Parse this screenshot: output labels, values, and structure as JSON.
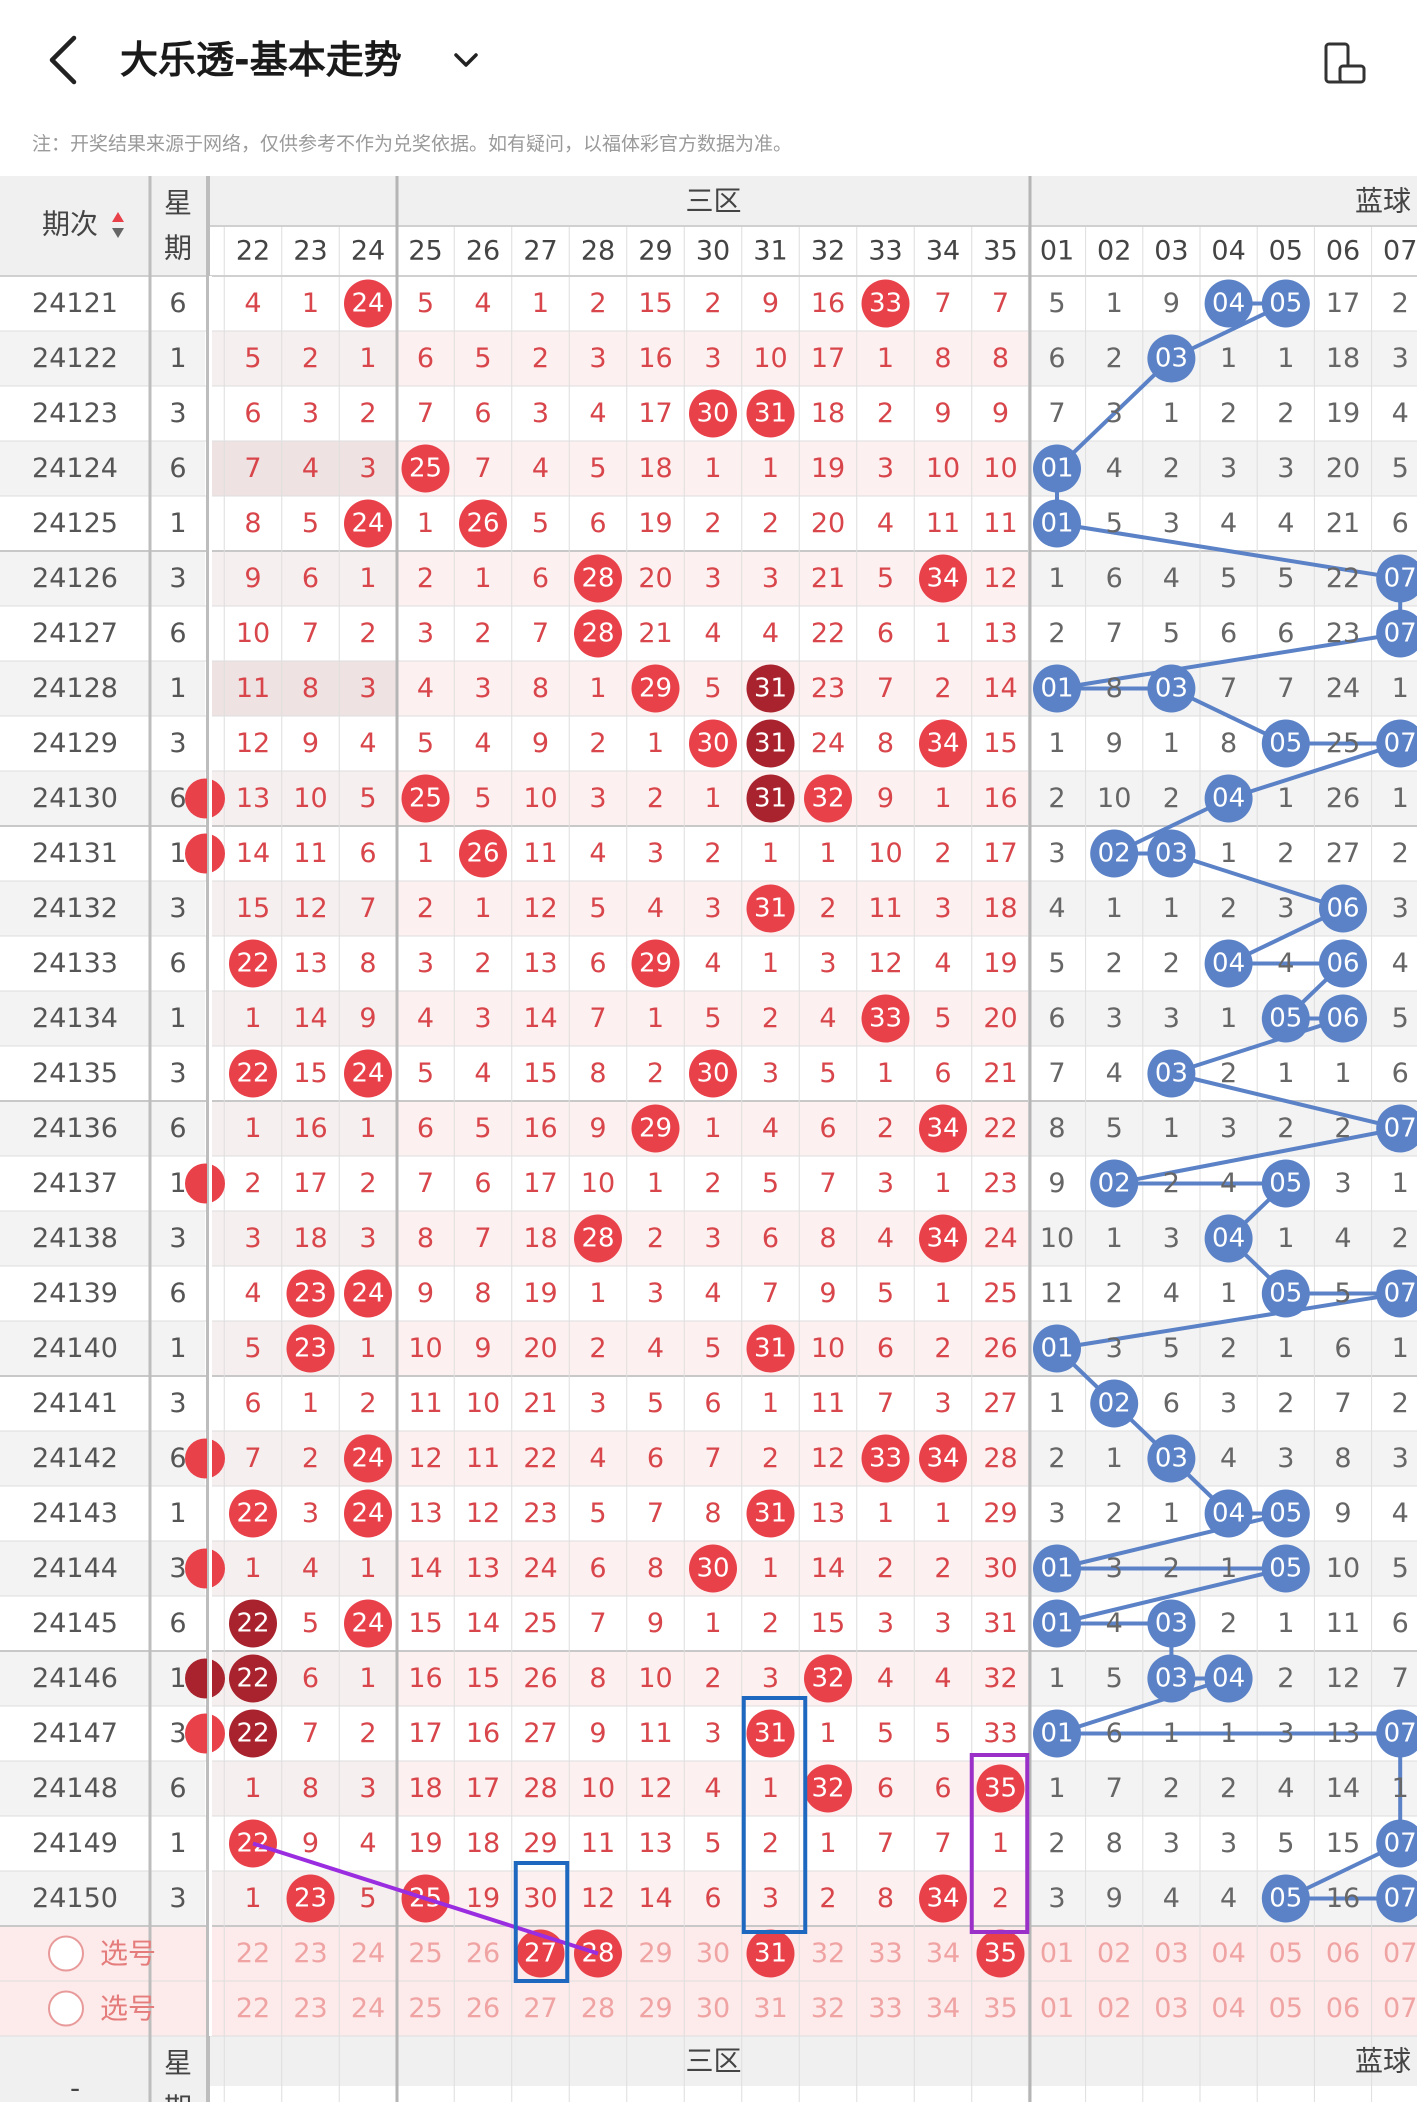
{
  "header": {
    "title": "大乐透-基本走势",
    "notice": "注：开奖结果来源于网络，仅供参考不作为兑奖依据。如有疑问，以福体彩官方数据为准。"
  },
  "icons": {
    "back": "chevron-left-icon",
    "title_menu": "chevron-down-icon",
    "view_mode": "phone-rotate-icon"
  },
  "columns": {
    "period_header": "期次",
    "week_header_line1": "星",
    "week_header_line2": "期",
    "front_zone_label": "三区",
    "blue_zone_label": "蓝球",
    "front_numbers": [
      "22",
      "23",
      "24",
      "25",
      "26",
      "27",
      "28",
      "29",
      "30",
      "31",
      "32",
      "33",
      "34",
      "35"
    ],
    "blue_numbers": [
      "01",
      "02",
      "03",
      "04",
      "05",
      "06",
      "07"
    ]
  },
  "colors": {
    "red_ball": "#e8414a",
    "dark_red_ball": "#a8232d",
    "blue_ball": "#5b82c7",
    "red_text": "#d8454a",
    "gray_text": "#555555",
    "select_text": "#f0a3a3",
    "blue_box": "#1e68c0",
    "purple_box": "#9b30c8",
    "purple_line": "#9b2de0"
  },
  "rows": [
    {
      "period": "24121",
      "week": "6",
      "edge": "",
      "front": [
        "4",
        "1",
        "24*",
        "5",
        "4",
        "1",
        "2",
        "15",
        "2",
        "9",
        "16",
        "33*",
        "7",
        "7"
      ],
      "blue": [
        "5",
        "1",
        "9",
        "04*",
        "05*",
        "17",
        "2"
      ]
    },
    {
      "period": "24122",
      "week": "1",
      "edge": "",
      "front": [
        "5",
        "2",
        "1",
        "6",
        "5",
        "2",
        "3",
        "16",
        "3",
        "10",
        "17",
        "1",
        "8",
        "8"
      ],
      "blue": [
        "6",
        "2",
        "03*",
        "1",
        "1",
        "18",
        "3"
      ]
    },
    {
      "period": "24123",
      "week": "3",
      "edge": "",
      "front": [
        "6",
        "3",
        "2",
        "7",
        "6",
        "3",
        "4",
        "17",
        "30*",
        "31*",
        "18",
        "2",
        "9",
        "9"
      ],
      "blue": [
        "7",
        "3",
        "1",
        "2",
        "2",
        "19",
        "4"
      ]
    },
    {
      "period": "24124",
      "week": "6",
      "edge": "",
      "front": [
        "7",
        "4",
        "3",
        "25*",
        "7",
        "4",
        "5",
        "18",
        "1",
        "1",
        "19",
        "3",
        "10",
        "10"
      ],
      "blue": [
        "01*",
        "4",
        "2",
        "3",
        "3",
        "20",
        "5"
      ]
    },
    {
      "period": "24125",
      "week": "1",
      "edge": "",
      "front": [
        "8",
        "5",
        "24*",
        "1",
        "26*",
        "5",
        "6",
        "19",
        "2",
        "2",
        "20",
        "4",
        "11",
        "11"
      ],
      "blue": [
        "01*",
        "5",
        "3",
        "4",
        "4",
        "21",
        "6"
      ]
    },
    {
      "period": "24126",
      "week": "3",
      "edge": "",
      "front": [
        "9",
        "6",
        "1",
        "2",
        "1",
        "6",
        "28*",
        "20",
        "3",
        "3",
        "21",
        "5",
        "34*",
        "12"
      ],
      "blue": [
        "1",
        "6",
        "4",
        "5",
        "5",
        "22",
        "07*"
      ]
    },
    {
      "period": "24127",
      "week": "6",
      "edge": "",
      "front": [
        "10",
        "7",
        "2",
        "3",
        "2",
        "7",
        "28*",
        "21",
        "4",
        "4",
        "22",
        "6",
        "1",
        "13"
      ],
      "blue": [
        "2",
        "7",
        "5",
        "6",
        "6",
        "23",
        "07*"
      ]
    },
    {
      "period": "24128",
      "week": "1",
      "edge": "",
      "front": [
        "11",
        "8",
        "3",
        "4",
        "3",
        "8",
        "1",
        "29*",
        "5",
        "31#",
        "23",
        "7",
        "2",
        "14"
      ],
      "blue": [
        "01*",
        "8",
        "03*",
        "7",
        "7",
        "24",
        "1"
      ]
    },
    {
      "period": "24129",
      "week": "3",
      "edge": "",
      "front": [
        "12",
        "9",
        "4",
        "5",
        "4",
        "9",
        "2",
        "1",
        "30*",
        "31#",
        "24",
        "8",
        "34*",
        "15"
      ],
      "blue": [
        "1",
        "9",
        "1",
        "8",
        "05*",
        "25",
        "07*"
      ]
    },
    {
      "period": "24130",
      "week": "6",
      "edge": "b",
      "front": [
        "13",
        "10",
        "5",
        "25*",
        "5",
        "10",
        "3",
        "2",
        "1",
        "31#",
        "32*",
        "9",
        "1",
        "16"
      ],
      "blue": [
        "2",
        "10",
        "2",
        "04*",
        "1",
        "26",
        "1"
      ]
    },
    {
      "period": "24131",
      "week": "1",
      "edge": "b",
      "front": [
        "14",
        "11",
        "6",
        "1",
        "26*",
        "11",
        "4",
        "3",
        "2",
        "1",
        "1",
        "10",
        "2",
        "17"
      ],
      "blue": [
        "3",
        "02*",
        "03*",
        "1",
        "2",
        "27",
        "2"
      ]
    },
    {
      "period": "24132",
      "week": "3",
      "edge": "",
      "front": [
        "15",
        "12",
        "7",
        "2",
        "1",
        "12",
        "5",
        "4",
        "3",
        "31*",
        "2",
        "11",
        "3",
        "18"
      ],
      "blue": [
        "4",
        "1",
        "1",
        "2",
        "3",
        "06*",
        "3"
      ]
    },
    {
      "period": "24133",
      "week": "6",
      "edge": "",
      "front": [
        "22*",
        "13",
        "8",
        "3",
        "2",
        "13",
        "6",
        "29*",
        "4",
        "1",
        "3",
        "12",
        "4",
        "19"
      ],
      "blue": [
        "5",
        "2",
        "2",
        "04*",
        "4",
        "06*",
        "4"
      ]
    },
    {
      "period": "24134",
      "week": "1",
      "edge": "",
      "front": [
        "1",
        "14",
        "9",
        "4",
        "3",
        "14",
        "7",
        "1",
        "5",
        "2",
        "4",
        "33*",
        "5",
        "20"
      ],
      "blue": [
        "6",
        "3",
        "3",
        "1",
        "05*",
        "06*",
        "5"
      ]
    },
    {
      "period": "24135",
      "week": "3",
      "edge": "",
      "front": [
        "22*",
        "15",
        "24*",
        "5",
        "4",
        "15",
        "8",
        "2",
        "30*",
        "3",
        "5",
        "1",
        "6",
        "21"
      ],
      "blue": [
        "7",
        "4",
        "03*",
        "2",
        "1",
        "1",
        "6"
      ]
    },
    {
      "period": "24136",
      "week": "6",
      "edge": "",
      "front": [
        "1",
        "16",
        "1",
        "6",
        "5",
        "16",
        "9",
        "29*",
        "1",
        "4",
        "6",
        "2",
        "34*",
        "22"
      ],
      "blue": [
        "8",
        "5",
        "1",
        "3",
        "2",
        "2",
        "07*"
      ]
    },
    {
      "period": "24137",
      "week": "1",
      "edge": "b",
      "front": [
        "2",
        "17",
        "2",
        "7",
        "6",
        "17",
        "10",
        "1",
        "2",
        "5",
        "7",
        "3",
        "1",
        "23"
      ],
      "blue": [
        "9",
        "02*",
        "2",
        "4",
        "05*",
        "3",
        "1"
      ]
    },
    {
      "period": "24138",
      "week": "3",
      "edge": "",
      "front": [
        "3",
        "18",
        "3",
        "8",
        "7",
        "18",
        "28*",
        "2",
        "3",
        "6",
        "8",
        "4",
        "34*",
        "24"
      ],
      "blue": [
        "10",
        "1",
        "3",
        "04*",
        "1",
        "4",
        "2"
      ]
    },
    {
      "period": "24139",
      "week": "6",
      "edge": "",
      "front": [
        "4",
        "23*",
        "24*",
        "9",
        "8",
        "19",
        "1",
        "3",
        "4",
        "7",
        "9",
        "5",
        "1",
        "25"
      ],
      "blue": [
        "11",
        "2",
        "4",
        "1",
        "05*",
        "5",
        "07*"
      ]
    },
    {
      "period": "24140",
      "week": "1",
      "edge": "",
      "front": [
        "5",
        "23*",
        "1",
        "10",
        "9",
        "20",
        "2",
        "4",
        "5",
        "31*",
        "10",
        "6",
        "2",
        "26"
      ],
      "blue": [
        "01*",
        "3",
        "5",
        "2",
        "1",
        "6",
        "1"
      ]
    },
    {
      "period": "24141",
      "week": "3",
      "edge": "",
      "front": [
        "6",
        "1",
        "2",
        "11",
        "10",
        "21",
        "3",
        "5",
        "6",
        "1",
        "11",
        "7",
        "3",
        "27"
      ],
      "blue": [
        "1",
        "02*",
        "6",
        "3",
        "2",
        "7",
        "2"
      ]
    },
    {
      "period": "24142",
      "week": "6",
      "edge": "b",
      "front": [
        "7",
        "2",
        "24*",
        "12",
        "11",
        "22",
        "4",
        "6",
        "7",
        "2",
        "12",
        "33*",
        "34*",
        "28"
      ],
      "blue": [
        "2",
        "1",
        "03*",
        "4",
        "3",
        "8",
        "3"
      ]
    },
    {
      "period": "24143",
      "week": "1",
      "edge": "",
      "front": [
        "22*",
        "3",
        "24*",
        "13",
        "12",
        "23",
        "5",
        "7",
        "8",
        "31*",
        "13",
        "1",
        "1",
        "29"
      ],
      "blue": [
        "3",
        "2",
        "1",
        "04*",
        "05*",
        "9",
        "4"
      ]
    },
    {
      "period": "24144",
      "week": "3",
      "edge": "b",
      "front": [
        "1",
        "4",
        "1",
        "14",
        "13",
        "24",
        "6",
        "8",
        "30*",
        "1",
        "14",
        "2",
        "2",
        "30"
      ],
      "blue": [
        "01*",
        "3",
        "2",
        "1",
        "05*",
        "10",
        "5"
      ]
    },
    {
      "period": "24145",
      "week": "6",
      "edge": "",
      "front": [
        "22#",
        "5",
        "24*",
        "15",
        "14",
        "25",
        "7",
        "9",
        "1",
        "2",
        "15",
        "3",
        "3",
        "31"
      ],
      "blue": [
        "01*",
        "4",
        "03*",
        "2",
        "1",
        "11",
        "6"
      ]
    },
    {
      "period": "24146",
      "week": "1",
      "edge": "d",
      "front": [
        "22#",
        "6",
        "1",
        "16",
        "15",
        "26",
        "8",
        "10",
        "2",
        "3",
        "32*",
        "4",
        "4",
        "32"
      ],
      "blue": [
        "1",
        "5",
        "03*",
        "04*",
        "2",
        "12",
        "7"
      ]
    },
    {
      "period": "24147",
      "week": "3",
      "edge": "b",
      "front": [
        "22#",
        "7",
        "2",
        "17",
        "16",
        "27",
        "9",
        "11",
        "3",
        "31*",
        "1",
        "5",
        "5",
        "33"
      ],
      "blue": [
        "01*",
        "6",
        "1",
        "1",
        "3",
        "13",
        "07*"
      ]
    },
    {
      "period": "24148",
      "week": "6",
      "edge": "",
      "front": [
        "1",
        "8",
        "3",
        "18",
        "17",
        "28",
        "10",
        "12",
        "4",
        "1",
        "32*",
        "6",
        "6",
        "35*"
      ],
      "blue": [
        "1",
        "7",
        "2",
        "2",
        "4",
        "14",
        "1"
      ]
    },
    {
      "period": "24149",
      "week": "1",
      "edge": "",
      "front": [
        "22*",
        "9",
        "4",
        "19",
        "18",
        "29",
        "11",
        "13",
        "5",
        "2",
        "1",
        "7",
        "7",
        "1"
      ],
      "blue": [
        "2",
        "8",
        "3",
        "3",
        "5",
        "15",
        "07*"
      ]
    },
    {
      "period": "24150",
      "week": "3",
      "edge": "",
      "front": [
        "1",
        "23*",
        "5",
        "25*",
        "19",
        "30",
        "12",
        "14",
        "6",
        "3",
        "2",
        "8",
        "34*",
        "2"
      ],
      "blue": [
        "3",
        "9",
        "4",
        "4",
        "05*",
        "16",
        "07*"
      ]
    }
  ],
  "select_rows": [
    {
      "label": "选号",
      "selected_front": [
        "27",
        "28",
        "31",
        "35"
      ]
    },
    {
      "label": "选号",
      "selected_front": []
    }
  ],
  "footer_header": {
    "period_label": "-",
    "week_line1": "星",
    "week_line2": "期",
    "front_zone_label": "三区",
    "blue_zone_label": "蓝球"
  }
}
